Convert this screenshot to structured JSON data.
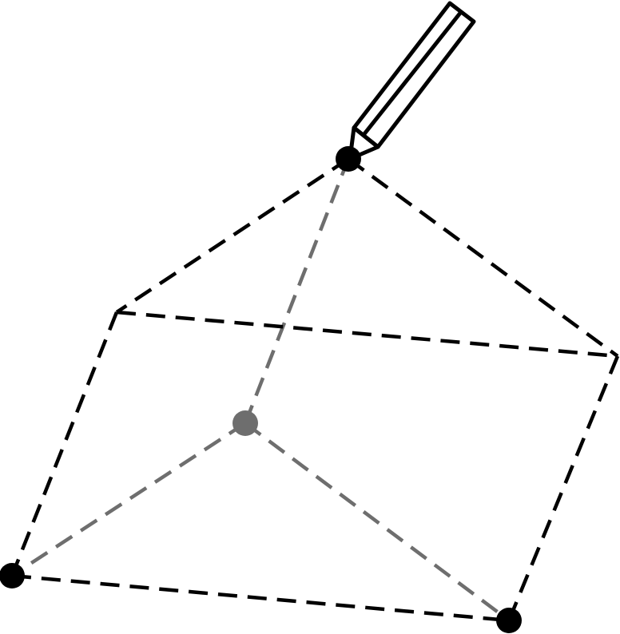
{
  "diagram": {
    "kind": "dashed-wireframe-solid-with-pencil",
    "colors": {
      "front_edge": "#000000",
      "hidden_edge": "#6e6e6e",
      "vertex_marked": "#000000",
      "vertex_hidden": "#6e6e6e",
      "pencil_outline": "#000000",
      "background": "#ffffff"
    },
    "pencil": {
      "icon": "pencil-icon"
    }
  }
}
